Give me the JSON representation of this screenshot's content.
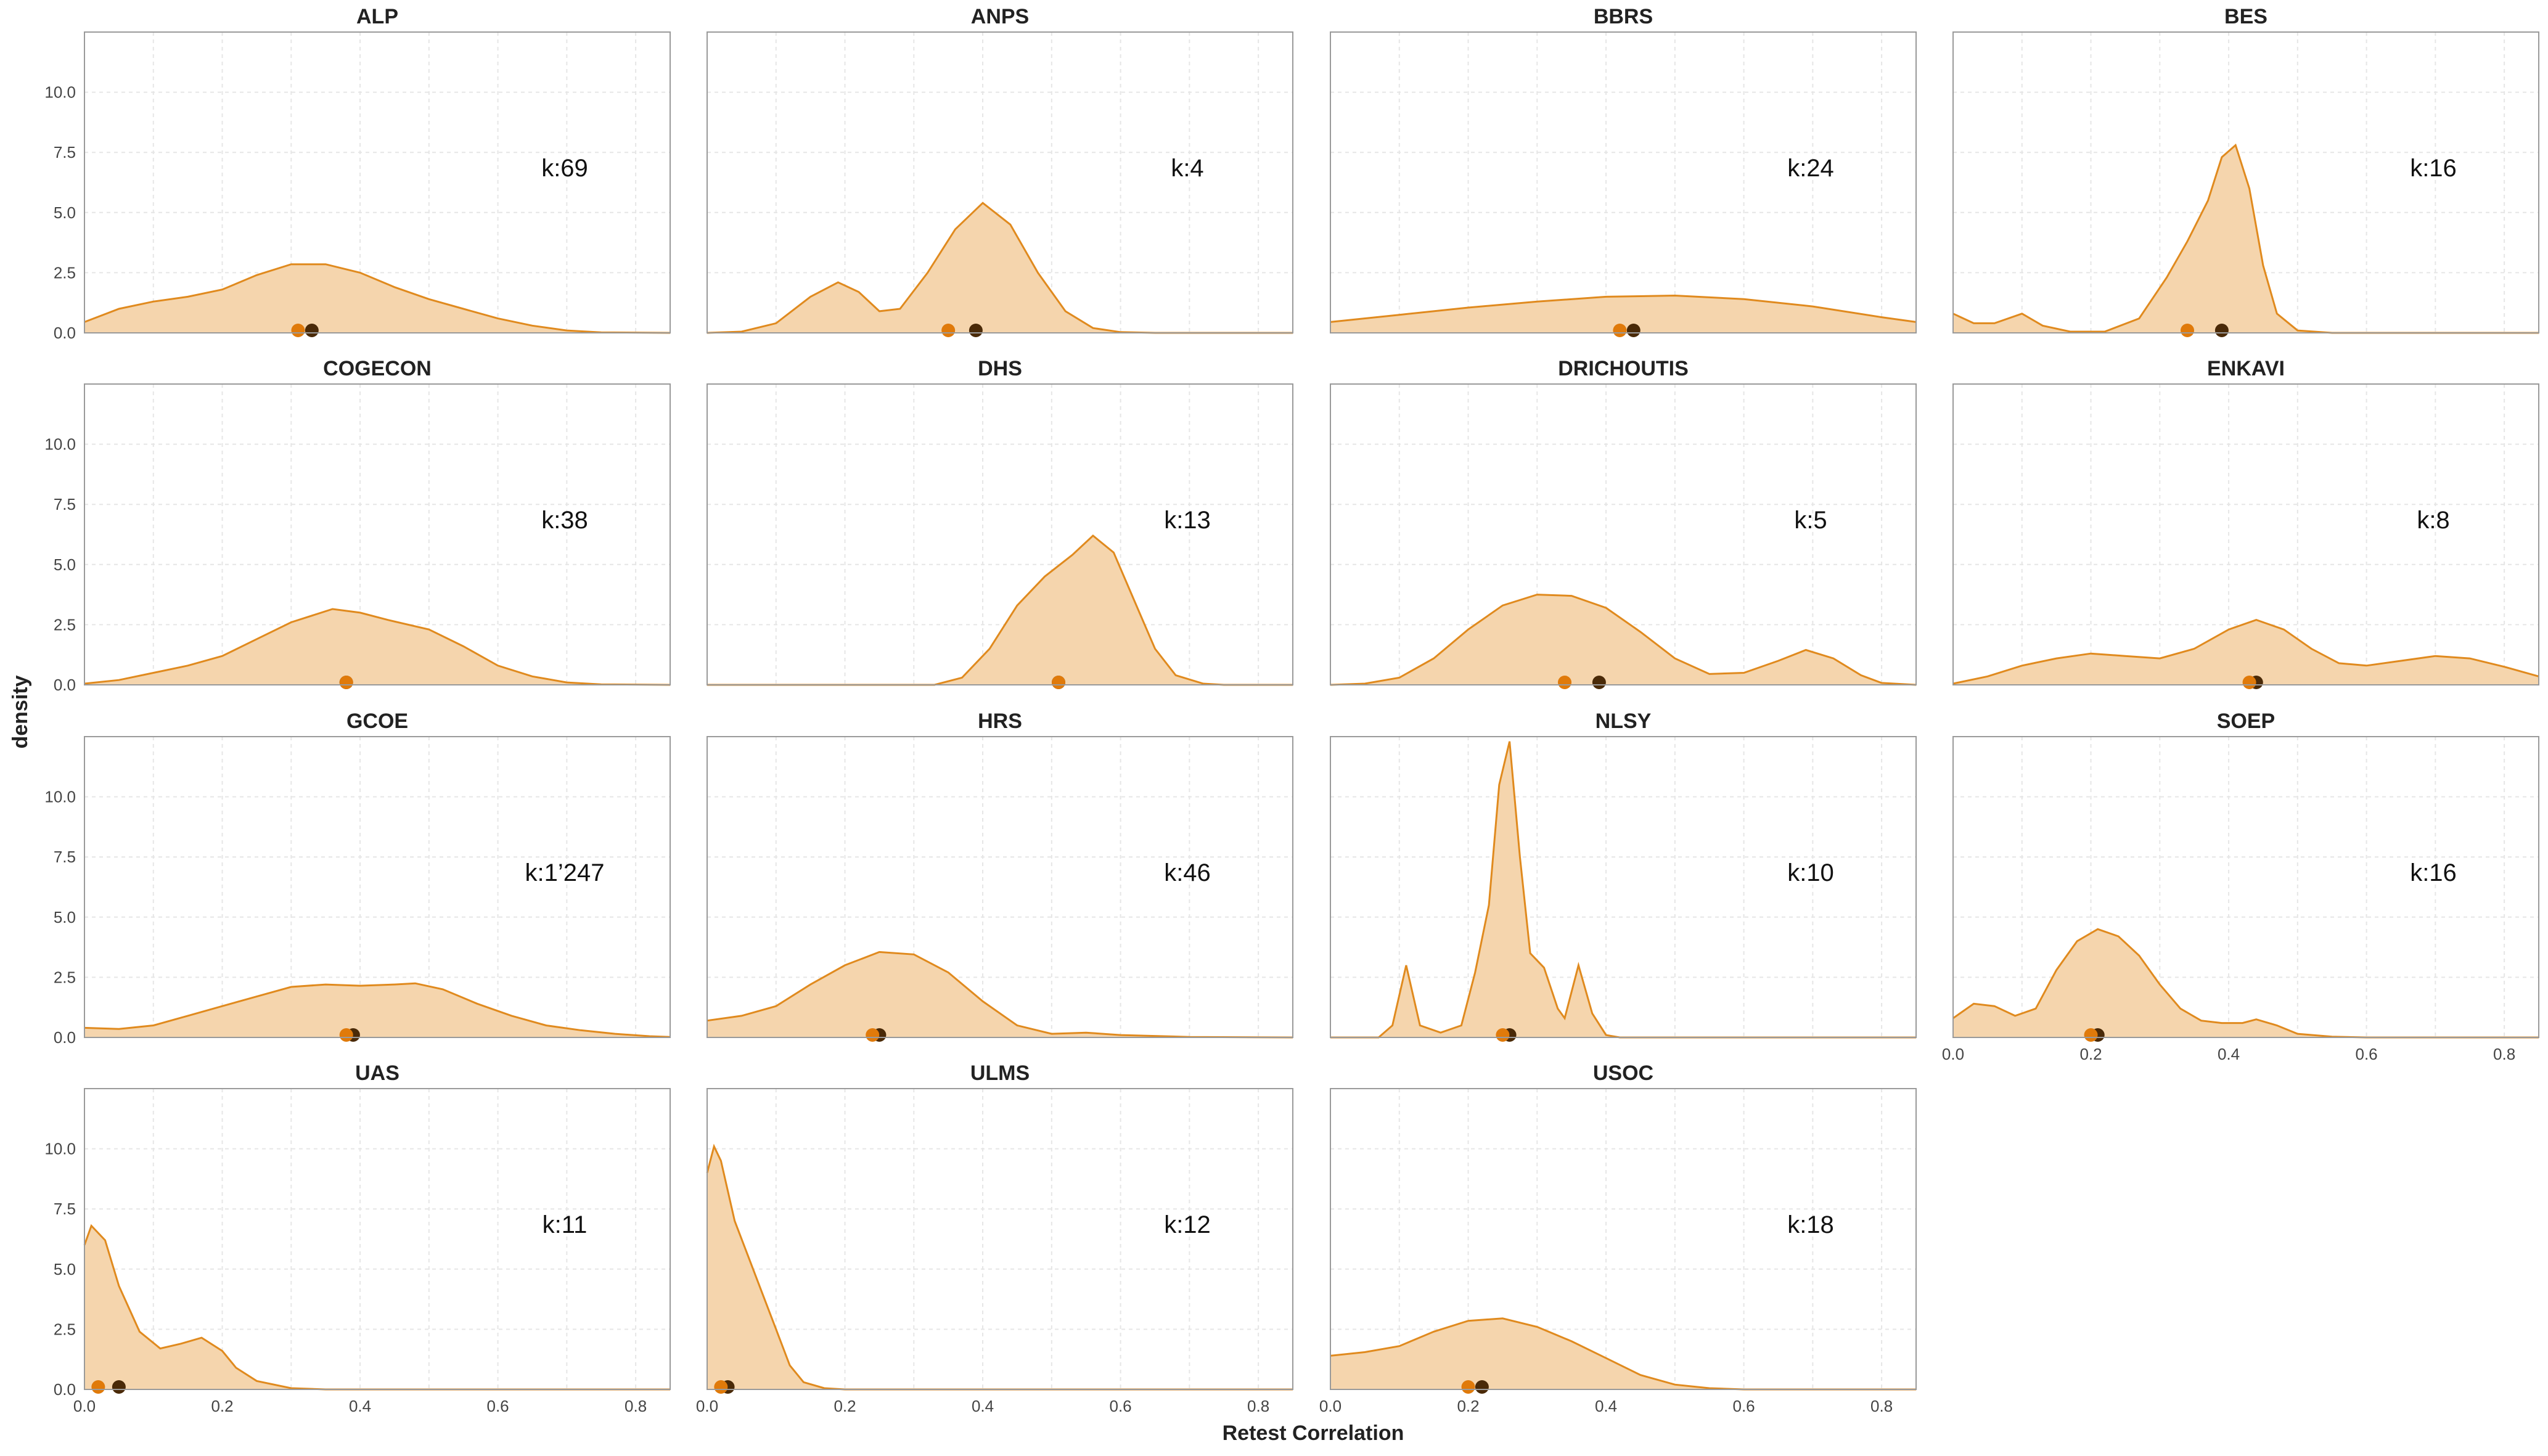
{
  "colors": {
    "fill": "#f5d5ad",
    "line": "#e08a1e",
    "median_dot": "#e07a0a",
    "mean_dot": "#4a2a08",
    "frame": "#9a9a9a",
    "grid": "#e6e6e6"
  },
  "chart_data": {
    "type": "area",
    "xlabel": "Retest Correlation",
    "ylabel": "density",
    "xlim": [
      0,
      0.85
    ],
    "ylim": [
      0,
      12.5
    ],
    "xticks": [
      "0.0",
      "0.2",
      "0.4",
      "0.6",
      "0.8"
    ],
    "yticks": [
      "0.0",
      "2.5",
      "5.0",
      "7.5",
      "10.0"
    ],
    "grid": true,
    "panels": [
      {
        "name": "ALP",
        "k": "k:69",
        "dots": [
          0.31,
          0.33
        ],
        "density": [
          [
            0,
            0.45
          ],
          [
            0.05,
            1.0
          ],
          [
            0.1,
            1.3
          ],
          [
            0.15,
            1.5
          ],
          [
            0.2,
            1.8
          ],
          [
            0.25,
            2.4
          ],
          [
            0.3,
            2.85
          ],
          [
            0.35,
            2.85
          ],
          [
            0.4,
            2.5
          ],
          [
            0.45,
            1.9
          ],
          [
            0.5,
            1.4
          ],
          [
            0.55,
            1.0
          ],
          [
            0.6,
            0.6
          ],
          [
            0.65,
            0.3
          ],
          [
            0.7,
            0.1
          ],
          [
            0.75,
            0.02
          ],
          [
            0.85,
            0
          ]
        ]
      },
      {
        "name": "ANPS",
        "k": "k:4",
        "dots": [
          0.35,
          0.39
        ],
        "density": [
          [
            0,
            0
          ],
          [
            0.05,
            0.05
          ],
          [
            0.1,
            0.4
          ],
          [
            0.15,
            1.5
          ],
          [
            0.19,
            2.1
          ],
          [
            0.22,
            1.7
          ],
          [
            0.25,
            0.9
          ],
          [
            0.28,
            1.0
          ],
          [
            0.32,
            2.5
          ],
          [
            0.36,
            4.3
          ],
          [
            0.4,
            5.4
          ],
          [
            0.44,
            4.5
          ],
          [
            0.48,
            2.5
          ],
          [
            0.52,
            0.9
          ],
          [
            0.56,
            0.2
          ],
          [
            0.6,
            0.03
          ],
          [
            0.65,
            0
          ],
          [
            0.85,
            0
          ]
        ]
      },
      {
        "name": "BBRS",
        "k": "k:24",
        "dots": [
          0.42,
          0.44
        ],
        "density": [
          [
            0,
            0.45
          ],
          [
            0.1,
            0.75
          ],
          [
            0.2,
            1.05
          ],
          [
            0.3,
            1.3
          ],
          [
            0.4,
            1.5
          ],
          [
            0.5,
            1.55
          ],
          [
            0.6,
            1.4
          ],
          [
            0.7,
            1.1
          ],
          [
            0.8,
            0.65
          ],
          [
            0.85,
            0.45
          ]
        ]
      },
      {
        "name": "BES",
        "k": "k:16",
        "dots": [
          0.34,
          0.39
        ],
        "density": [
          [
            0,
            0.8
          ],
          [
            0.03,
            0.4
          ],
          [
            0.06,
            0.4
          ],
          [
            0.1,
            0.8
          ],
          [
            0.13,
            0.3
          ],
          [
            0.17,
            0.05
          ],
          [
            0.22,
            0.05
          ],
          [
            0.27,
            0.6
          ],
          [
            0.31,
            2.3
          ],
          [
            0.34,
            3.8
          ],
          [
            0.37,
            5.5
          ],
          [
            0.39,
            7.3
          ],
          [
            0.41,
            7.8
          ],
          [
            0.43,
            6.0
          ],
          [
            0.45,
            2.8
          ],
          [
            0.47,
            0.8
          ],
          [
            0.5,
            0.1
          ],
          [
            0.55,
            0
          ],
          [
            0.85,
            0
          ]
        ]
      },
      {
        "name": "COGECON",
        "k": "k:38",
        "dots": [
          0.38,
          0.38
        ],
        "density": [
          [
            0,
            0.05
          ],
          [
            0.05,
            0.2
          ],
          [
            0.1,
            0.5
          ],
          [
            0.15,
            0.8
          ],
          [
            0.2,
            1.2
          ],
          [
            0.25,
            1.9
          ],
          [
            0.3,
            2.6
          ],
          [
            0.36,
            3.15
          ],
          [
            0.4,
            3.0
          ],
          [
            0.44,
            2.7
          ],
          [
            0.5,
            2.3
          ],
          [
            0.55,
            1.6
          ],
          [
            0.6,
            0.8
          ],
          [
            0.65,
            0.35
          ],
          [
            0.7,
            0.1
          ],
          [
            0.75,
            0.02
          ],
          [
            0.85,
            0
          ]
        ]
      },
      {
        "name": "DHS",
        "k": "k:13",
        "dots": [
          0.51,
          0.51
        ],
        "density": [
          [
            0,
            0
          ],
          [
            0.33,
            0
          ],
          [
            0.37,
            0.3
          ],
          [
            0.41,
            1.5
          ],
          [
            0.45,
            3.3
          ],
          [
            0.49,
            4.5
          ],
          [
            0.53,
            5.4
          ],
          [
            0.56,
            6.2
          ],
          [
            0.59,
            5.5
          ],
          [
            0.62,
            3.5
          ],
          [
            0.65,
            1.5
          ],
          [
            0.68,
            0.4
          ],
          [
            0.72,
            0.05
          ],
          [
            0.75,
            0
          ],
          [
            0.85,
            0
          ]
        ]
      },
      {
        "name": "DRICHOUTIS",
        "k": "k:5",
        "dots": [
          0.34,
          0.39
        ],
        "density": [
          [
            0,
            0
          ],
          [
            0.05,
            0.05
          ],
          [
            0.1,
            0.3
          ],
          [
            0.15,
            1.1
          ],
          [
            0.2,
            2.3
          ],
          [
            0.25,
            3.3
          ],
          [
            0.3,
            3.75
          ],
          [
            0.35,
            3.7
          ],
          [
            0.4,
            3.2
          ],
          [
            0.45,
            2.2
          ],
          [
            0.5,
            1.1
          ],
          [
            0.55,
            0.45
          ],
          [
            0.6,
            0.5
          ],
          [
            0.65,
            1.0
          ],
          [
            0.69,
            1.45
          ],
          [
            0.73,
            1.1
          ],
          [
            0.77,
            0.4
          ],
          [
            0.8,
            0.08
          ],
          [
            0.85,
            0
          ]
        ]
      },
      {
        "name": "ENKAVI",
        "k": "k:8",
        "dots": [
          0.43,
          0.44
        ],
        "density": [
          [
            0,
            0.05
          ],
          [
            0.05,
            0.35
          ],
          [
            0.1,
            0.8
          ],
          [
            0.15,
            1.1
          ],
          [
            0.2,
            1.3
          ],
          [
            0.25,
            1.2
          ],
          [
            0.3,
            1.1
          ],
          [
            0.35,
            1.5
          ],
          [
            0.4,
            2.3
          ],
          [
            0.44,
            2.7
          ],
          [
            0.48,
            2.3
          ],
          [
            0.52,
            1.5
          ],
          [
            0.56,
            0.9
          ],
          [
            0.6,
            0.8
          ],
          [
            0.65,
            1.0
          ],
          [
            0.7,
            1.2
          ],
          [
            0.75,
            1.1
          ],
          [
            0.8,
            0.75
          ],
          [
            0.85,
            0.35
          ]
        ]
      },
      {
        "name": "GCOE",
        "k": "k:1’247",
        "dots": [
          0.38,
          0.39
        ],
        "density": [
          [
            0,
            0.4
          ],
          [
            0.05,
            0.35
          ],
          [
            0.1,
            0.5
          ],
          [
            0.15,
            0.9
          ],
          [
            0.2,
            1.3
          ],
          [
            0.25,
            1.7
          ],
          [
            0.3,
            2.1
          ],
          [
            0.35,
            2.2
          ],
          [
            0.4,
            2.15
          ],
          [
            0.45,
            2.2
          ],
          [
            0.48,
            2.25
          ],
          [
            0.52,
            2.0
          ],
          [
            0.57,
            1.4
          ],
          [
            0.62,
            0.9
          ],
          [
            0.67,
            0.5
          ],
          [
            0.72,
            0.3
          ],
          [
            0.77,
            0.15
          ],
          [
            0.82,
            0.05
          ],
          [
            0.85,
            0.02
          ]
        ]
      },
      {
        "name": "HRS",
        "k": "k:46",
        "dots": [
          0.24,
          0.25
        ],
        "density": [
          [
            0,
            0.7
          ],
          [
            0.05,
            0.9
          ],
          [
            0.1,
            1.3
          ],
          [
            0.15,
            2.2
          ],
          [
            0.2,
            3.0
          ],
          [
            0.25,
            3.55
          ],
          [
            0.3,
            3.45
          ],
          [
            0.35,
            2.7
          ],
          [
            0.4,
            1.5
          ],
          [
            0.45,
            0.5
          ],
          [
            0.5,
            0.15
          ],
          [
            0.55,
            0.2
          ],
          [
            0.6,
            0.1
          ],
          [
            0.7,
            0.02
          ],
          [
            0.85,
            0
          ]
        ]
      },
      {
        "name": "NLSY",
        "k": "k:10",
        "dots": [
          0.25,
          0.26
        ],
        "density": [
          [
            0,
            0
          ],
          [
            0.07,
            0
          ],
          [
            0.09,
            0.5
          ],
          [
            0.11,
            3.0
          ],
          [
            0.13,
            0.5
          ],
          [
            0.16,
            0.2
          ],
          [
            0.19,
            0.5
          ],
          [
            0.21,
            2.7
          ],
          [
            0.23,
            5.5
          ],
          [
            0.245,
            10.5
          ],
          [
            0.26,
            12.3
          ],
          [
            0.275,
            7.5
          ],
          [
            0.29,
            3.5
          ],
          [
            0.31,
            2.9
          ],
          [
            0.33,
            1.2
          ],
          [
            0.34,
            0.8
          ],
          [
            0.36,
            3.0
          ],
          [
            0.38,
            1.0
          ],
          [
            0.4,
            0.1
          ],
          [
            0.42,
            0
          ],
          [
            0.85,
            0
          ]
        ]
      },
      {
        "name": "SOEP",
        "k": "k:16",
        "dots": [
          0.2,
          0.21
        ],
        "density": [
          [
            0,
            0.8
          ],
          [
            0.03,
            1.4
          ],
          [
            0.06,
            1.3
          ],
          [
            0.09,
            0.9
          ],
          [
            0.12,
            1.2
          ],
          [
            0.15,
            2.8
          ],
          [
            0.18,
            4.0
          ],
          [
            0.21,
            4.5
          ],
          [
            0.24,
            4.2
          ],
          [
            0.27,
            3.4
          ],
          [
            0.3,
            2.2
          ],
          [
            0.33,
            1.2
          ],
          [
            0.36,
            0.7
          ],
          [
            0.39,
            0.6
          ],
          [
            0.42,
            0.6
          ],
          [
            0.44,
            0.75
          ],
          [
            0.47,
            0.5
          ],
          [
            0.5,
            0.15
          ],
          [
            0.55,
            0.03
          ],
          [
            0.6,
            0
          ],
          [
            0.85,
            0
          ]
        ]
      },
      {
        "name": "UAS",
        "k": "k:11",
        "dots": [
          0.02,
          0.05
        ],
        "density": [
          [
            0,
            6.0
          ],
          [
            0.01,
            6.8
          ],
          [
            0.03,
            6.2
          ],
          [
            0.05,
            4.3
          ],
          [
            0.08,
            2.4
          ],
          [
            0.11,
            1.7
          ],
          [
            0.14,
            1.9
          ],
          [
            0.17,
            2.15
          ],
          [
            0.2,
            1.6
          ],
          [
            0.22,
            0.9
          ],
          [
            0.25,
            0.35
          ],
          [
            0.3,
            0.05
          ],
          [
            0.35,
            0
          ],
          [
            0.85,
            0
          ]
        ]
      },
      {
        "name": "ULMS",
        "k": "k:12",
        "dots": [
          0.02,
          0.03
        ],
        "density": [
          [
            0,
            9.0
          ],
          [
            0.01,
            10.1
          ],
          [
            0.02,
            9.5
          ],
          [
            0.04,
            7.0
          ],
          [
            0.06,
            5.5
          ],
          [
            0.08,
            4.0
          ],
          [
            0.1,
            2.5
          ],
          [
            0.12,
            1.0
          ],
          [
            0.14,
            0.3
          ],
          [
            0.17,
            0.05
          ],
          [
            0.2,
            0
          ],
          [
            0.85,
            0
          ]
        ]
      },
      {
        "name": "USOC",
        "k": "k:18",
        "dots": [
          0.2,
          0.22
        ],
        "density": [
          [
            0,
            1.4
          ],
          [
            0.05,
            1.55
          ],
          [
            0.1,
            1.8
          ],
          [
            0.15,
            2.4
          ],
          [
            0.2,
            2.85
          ],
          [
            0.25,
            2.95
          ],
          [
            0.3,
            2.6
          ],
          [
            0.35,
            2.0
          ],
          [
            0.4,
            1.3
          ],
          [
            0.45,
            0.6
          ],
          [
            0.5,
            0.2
          ],
          [
            0.55,
            0.05
          ],
          [
            0.6,
            0
          ],
          [
            0.85,
            0
          ]
        ]
      }
    ]
  }
}
